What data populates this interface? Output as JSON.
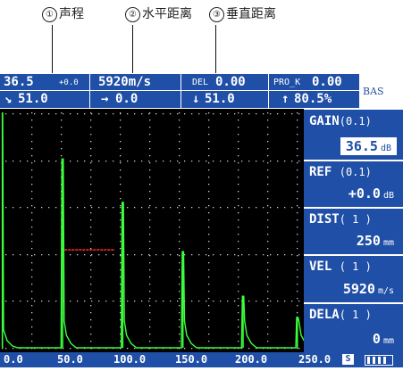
{
  "annotations": [
    {
      "num": "①",
      "text": "声程"
    },
    {
      "num": "②",
      "text": "水平距离"
    },
    {
      "num": "③",
      "text": "垂直距离"
    }
  ],
  "header": {
    "gain_value": "36.5",
    "gain_offset": "+0.0",
    "velocity": "5920m/s",
    "del_label": "DEL",
    "del_value": "0.00",
    "pro_label": "PRO_K",
    "pro_value": "0.00",
    "path_arrow": "↘",
    "path_value": "51.0",
    "horiz_arrow": "→",
    "horiz_value": "0.0",
    "depth_arrow": "↓",
    "depth_value": "51.0",
    "amp_arrow": "↑",
    "amp_value": "80.5%",
    "mode": "BAS"
  },
  "panel": {
    "gain": {
      "label": "GAIN",
      "step": "(0.1)",
      "value": "36.5",
      "unit": "dB"
    },
    "ref": {
      "label": "REF",
      "step": "(0.1)",
      "value": "+0.0",
      "unit": "dB"
    },
    "dist": {
      "label": "DIST",
      "step": "( 1 )",
      "value": "250",
      "unit": "mm"
    },
    "vel": {
      "label": "VEL",
      "step": "( 1 )",
      "value": "5920",
      "unit": "m/s"
    },
    "dela": {
      "label": "DELA",
      "step": "( 1 )",
      "value": "0",
      "unit": "mm"
    }
  },
  "axis": {
    "ticks": [
      "0.0",
      "50.0",
      "100.0",
      "150.0",
      "200.0",
      "250.0"
    ],
    "status": "S"
  },
  "chart_data": {
    "type": "line",
    "x_range": [
      0,
      250
    ],
    "y_range": [
      0,
      100
    ],
    "grid": true,
    "echoes": [
      {
        "x": 0,
        "amplitude": 100
      },
      {
        "x": 51,
        "amplitude": 80.5
      },
      {
        "x": 102,
        "amplitude": 62
      },
      {
        "x": 153,
        "amplitude": 41
      },
      {
        "x": 204,
        "amplitude": 22
      },
      {
        "x": 250,
        "amplitude": 13
      }
    ],
    "gate": {
      "start": 51,
      "end": 102,
      "level": 41
    },
    "colors": {
      "trace": "#3cff3c",
      "gate": "#ff2a2a",
      "grid": "#cfcfcf",
      "background": "#000000"
    }
  }
}
